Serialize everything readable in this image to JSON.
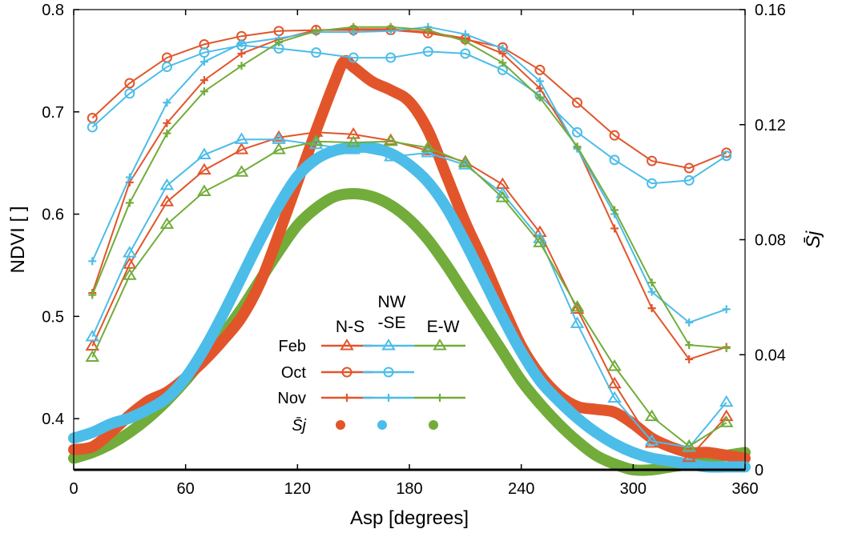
{
  "chart_data": {
    "type": "line",
    "xlabel": "Asp [degrees]",
    "ylabel_left": "NDVI [ ]",
    "ylabel_right": "S̄j",
    "xlim": [
      0,
      360
    ],
    "ylim_left": [
      0.35,
      0.8
    ],
    "ylim_right": [
      0,
      0.16
    ],
    "x_ticks": [
      "0",
      "60",
      "120",
      "180",
      "240",
      "300",
      "360"
    ],
    "y_ticks_left": [
      "0.4",
      "0.5",
      "0.6",
      "0.7",
      "0.8"
    ],
    "y_ticks_right": [
      "0",
      "0.04",
      "0.08",
      "0.12",
      "0.16"
    ],
    "colors": {
      "N-S": "#e2552b",
      "NW-SE": "#4cbde8",
      "E-W": "#72ac3a"
    },
    "legend": {
      "column_headers": [
        "N-S",
        "NW\n-SE",
        "E-W"
      ],
      "row_labels": [
        "Feb",
        "Oct",
        "Nov",
        "S̄j"
      ],
      "placement": "center-bottom"
    },
    "x": [
      10,
      30,
      50,
      70,
      90,
      110,
      130,
      150,
      170,
      190,
      210,
      230,
      250,
      270,
      290,
      310,
      330,
      350
    ],
    "ndvi_series": [
      {
        "name": "Feb N-S",
        "month": "Feb",
        "direction": "N-S",
        "marker": "triangle",
        "values": [
          0.471,
          0.551,
          0.612,
          0.643,
          0.663,
          0.675,
          0.68,
          0.678,
          0.672,
          0.662,
          0.651,
          0.629,
          0.582,
          0.507,
          0.434,
          0.376,
          0.362,
          0.402
        ]
      },
      {
        "name": "Feb NW-SE",
        "month": "Feb",
        "direction": "NW-SE",
        "marker": "triangle",
        "values": [
          0.48,
          0.562,
          0.628,
          0.658,
          0.673,
          0.673,
          0.668,
          0.663,
          0.656,
          0.66,
          0.648,
          0.62,
          0.576,
          0.493,
          0.42,
          0.378,
          0.372,
          0.416
        ]
      },
      {
        "name": "Feb E-W",
        "month": "Feb",
        "direction": "E-W",
        "marker": "triangle",
        "values": [
          0.46,
          0.54,
          0.59,
          0.622,
          0.641,
          0.663,
          0.671,
          0.67,
          0.671,
          0.665,
          0.65,
          0.616,
          0.572,
          0.509,
          0.451,
          0.402,
          0.373,
          0.396
        ]
      },
      {
        "name": "Oct N-S",
        "month": "Oct",
        "direction": "N-S",
        "marker": "circle",
        "values": [
          0.694,
          0.728,
          0.753,
          0.766,
          0.774,
          0.779,
          0.78,
          0.78,
          0.78,
          0.777,
          0.771,
          0.763,
          0.741,
          0.709,
          0.677,
          0.652,
          0.645,
          0.66
        ]
      },
      {
        "name": "Oct NW-SE",
        "month": "Oct",
        "direction": "NW-SE",
        "marker": "circle",
        "values": [
          0.685,
          0.718,
          0.744,
          0.758,
          0.765,
          0.762,
          0.758,
          0.753,
          0.753,
          0.759,
          0.757,
          0.741,
          0.716,
          0.68,
          0.653,
          0.63,
          0.633,
          0.657
        ]
      },
      {
        "name": "Nov N-S",
        "month": "Nov",
        "direction": "N-S",
        "marker": "plus",
        "values": [
          0.523,
          0.631,
          0.689,
          0.731,
          0.757,
          0.771,
          0.78,
          0.781,
          0.781,
          0.778,
          0.772,
          0.757,
          0.723,
          0.665,
          0.586,
          0.508,
          0.458,
          0.47
        ]
      },
      {
        "name": "Nov NW-SE",
        "month": "Nov",
        "direction": "NW-SE",
        "marker": "plus",
        "values": [
          0.554,
          0.636,
          0.709,
          0.749,
          0.767,
          0.772,
          0.778,
          0.778,
          0.779,
          0.783,
          0.776,
          0.762,
          0.73,
          0.664,
          0.6,
          0.524,
          0.494,
          0.507
        ]
      },
      {
        "name": "Nov E-W",
        "month": "Nov",
        "direction": "E-W",
        "marker": "plus",
        "values": [
          0.521,
          0.611,
          0.679,
          0.72,
          0.745,
          0.768,
          0.779,
          0.783,
          0.783,
          0.78,
          0.769,
          0.748,
          0.714,
          0.666,
          0.604,
          0.533,
          0.472,
          0.469
        ]
      }
    ],
    "sj_series": [
      {
        "name": "S̄j N-S",
        "direction": "N-S",
        "x": [
          0,
          10,
          20,
          30,
          40,
          50,
          60,
          70,
          80,
          90,
          100,
          110,
          120,
          130,
          140,
          145,
          150,
          160,
          170,
          180,
          190,
          200,
          210,
          220,
          230,
          240,
          250,
          260,
          270,
          280,
          290,
          300,
          310,
          320,
          330,
          340,
          350,
          360
        ],
        "values": [
          0.007,
          0.008,
          0.013,
          0.019,
          0.024,
          0.027,
          0.032,
          0.038,
          0.045,
          0.053,
          0.065,
          0.082,
          0.1,
          0.118,
          0.135,
          0.142,
          0.14,
          0.135,
          0.132,
          0.128,
          0.118,
          0.102,
          0.086,
          0.072,
          0.057,
          0.043,
          0.033,
          0.026,
          0.022,
          0.021,
          0.02,
          0.016,
          0.011,
          0.008,
          0.006,
          0.006,
          0.005,
          0.004
        ]
      },
      {
        "name": "S̄j NW-SE",
        "direction": "NW-SE",
        "x": [
          0,
          10,
          20,
          30,
          40,
          50,
          60,
          70,
          80,
          90,
          100,
          110,
          120,
          130,
          140,
          150,
          160,
          170,
          180,
          190,
          200,
          210,
          220,
          230,
          240,
          250,
          260,
          270,
          280,
          290,
          300,
          310,
          320,
          330,
          340,
          350,
          360
        ],
        "values": [
          0.011,
          0.013,
          0.016,
          0.018,
          0.021,
          0.025,
          0.032,
          0.042,
          0.054,
          0.067,
          0.08,
          0.092,
          0.102,
          0.108,
          0.111,
          0.112,
          0.112,
          0.11,
          0.106,
          0.1,
          0.091,
          0.079,
          0.066,
          0.053,
          0.041,
          0.031,
          0.024,
          0.018,
          0.013,
          0.009,
          0.006,
          0.004,
          0.003,
          0.002,
          0.001,
          0.001,
          0.001
        ]
      },
      {
        "name": "S̄j E-W",
        "direction": "E-W",
        "x": [
          0,
          10,
          20,
          30,
          40,
          50,
          60,
          70,
          80,
          90,
          100,
          110,
          120,
          130,
          140,
          150,
          160,
          170,
          180,
          190,
          200,
          210,
          220,
          230,
          240,
          250,
          260,
          270,
          280,
          290,
          300,
          310,
          320,
          330,
          340,
          350,
          360
        ],
        "values": [
          0.004,
          0.006,
          0.009,
          0.013,
          0.018,
          0.024,
          0.031,
          0.039,
          0.047,
          0.056,
          0.066,
          0.076,
          0.085,
          0.091,
          0.095,
          0.096,
          0.095,
          0.092,
          0.087,
          0.08,
          0.071,
          0.061,
          0.051,
          0.041,
          0.031,
          0.023,
          0.016,
          0.01,
          0.005,
          0.002,
          0.0,
          0.0,
          0.001,
          0.002,
          0.004,
          0.005,
          0.006
        ]
      }
    ]
  }
}
